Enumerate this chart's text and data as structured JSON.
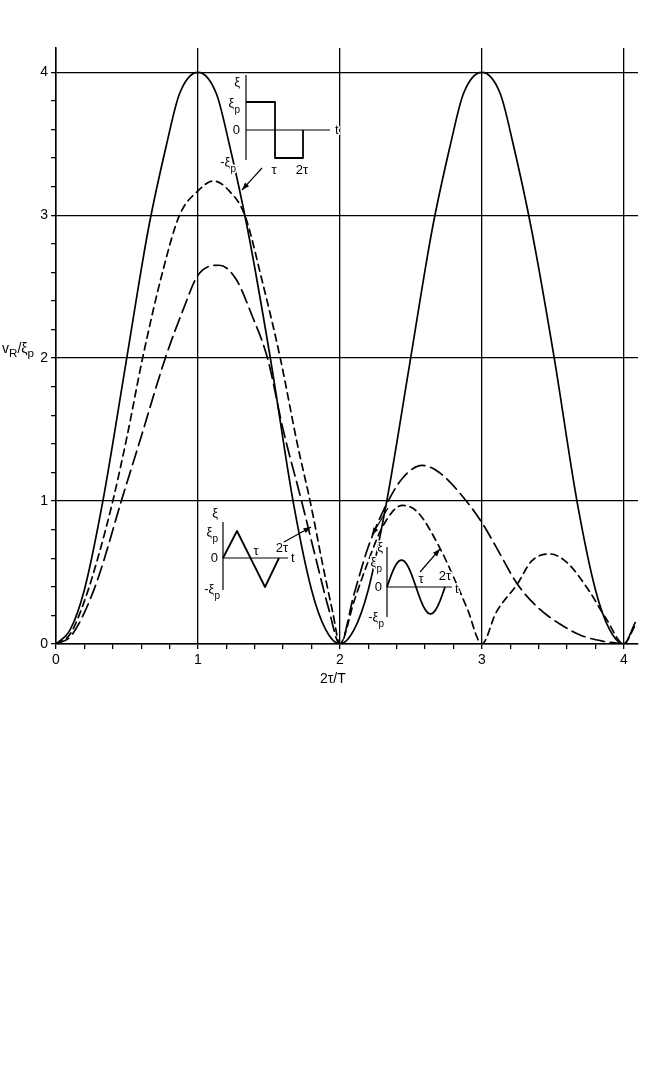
{
  "chart_data": {
    "type": "line",
    "xlabel": "2τ/T",
    "ylabel": "v$_{R}$/ξ$_{p}$",
    "xlim": [
      0,
      4.1
    ],
    "ylim": [
      0,
      4.17
    ],
    "xticks": [
      0,
      {
        "value": 0.2,
        "label": null
      },
      {
        "value": 0.4,
        "label": null
      },
      {
        "value": 0.6,
        "label": null
      },
      {
        "value": 0.8,
        "label": null
      },
      1,
      {
        "value": 1.2,
        "label": null
      },
      {
        "value": 1.4,
        "label": null
      },
      {
        "value": 1.6,
        "label": null
      },
      {
        "value": 1.8,
        "label": null
      },
      2,
      {
        "value": 2.2,
        "label": null
      },
      {
        "value": 2.4,
        "label": null
      },
      {
        "value": 2.6,
        "label": null
      },
      {
        "value": 2.8,
        "label": null
      },
      3,
      {
        "value": 3.2,
        "label": null
      },
      {
        "value": 3.4,
        "label": null
      },
      {
        "value": 3.6,
        "label": null
      },
      {
        "value": 3.8,
        "label": null
      },
      4
    ],
    "yticks": [
      0,
      {
        "value": 0.2,
        "label": null
      },
      {
        "value": 0.4,
        "label": null
      },
      {
        "value": 0.6,
        "label": null
      },
      {
        "value": 0.8,
        "label": null
      },
      1,
      {
        "value": 1.2,
        "label": null
      },
      {
        "value": 1.4,
        "label": null
      },
      {
        "value": 1.6,
        "label": null
      },
      {
        "value": 1.8,
        "label": null
      },
      2,
      {
        "value": 2.2,
        "label": null
      },
      {
        "value": 2.4,
        "label": null
      },
      {
        "value": 2.6,
        "label": null
      },
      {
        "value": 2.8,
        "label": null
      },
      3,
      {
        "value": 3.2,
        "label": null
      },
      {
        "value": 3.4,
        "label": null
      },
      {
        "value": 3.6,
        "label": null
      },
      {
        "value": 3.8,
        "label": null
      },
      4
    ],
    "grid": true,
    "legend": false,
    "series": [
      {
        "color": "#000000",
        "line_style": "solid",
        "x": [
          0,
          0.1,
          0.2,
          0.33,
          0.49,
          0.65,
          0.78,
          0.87,
          1.0,
          1.13,
          1.22,
          1.35,
          1.51,
          1.67,
          1.8,
          1.9,
          2.0,
          2.1,
          2.2,
          2.33,
          2.49,
          2.65,
          2.78,
          2.87,
          3.0,
          3.13,
          3.22,
          3.35,
          3.51,
          3.67,
          3.8,
          3.9,
          4.0,
          4.08
        ],
        "values": [
          0,
          0.1,
          0.38,
          1.0,
          1.95,
          2.9,
          3.5,
          3.85,
          4.0,
          3.85,
          3.5,
          2.9,
          2.0,
          1.0,
          0.38,
          0.1,
          0,
          0.1,
          0.38,
          1.0,
          1.95,
          2.9,
          3.5,
          3.85,
          4.0,
          3.85,
          3.5,
          2.9,
          2.0,
          1.0,
          0.38,
          0.1,
          0,
          0.15
        ]
      },
      {
        "color": "#000000",
        "line_style": "dashed",
        "x": [
          0,
          0.1,
          0.2,
          0.3,
          0.4,
          0.5,
          0.61,
          0.75,
          0.87,
          1.0,
          1.11,
          1.22,
          1.33,
          1.45,
          1.58,
          1.7,
          1.79,
          1.88,
          1.95,
          2.0,
          2.1,
          2.2,
          2.3,
          2.44,
          2.55,
          2.7,
          2.8,
          2.9,
          3.0,
          3.1,
          3.25,
          3.35,
          3.48,
          3.6,
          3.75,
          3.88,
          4.0,
          4.08
        ],
        "values": [
          0,
          0.07,
          0.3,
          0.62,
          1.0,
          1.45,
          2.0,
          2.6,
          3.0,
          3.17,
          3.24,
          3.17,
          3.0,
          2.55,
          2.0,
          1.4,
          1.0,
          0.55,
          0.22,
          0,
          0.3,
          0.58,
          0.82,
          0.97,
          0.92,
          0.68,
          0.47,
          0.24,
          0,
          0.22,
          0.42,
          0.58,
          0.63,
          0.57,
          0.38,
          0.17,
          0,
          0.13
        ]
      },
      {
        "color": "#000000",
        "line_style": "dashed",
        "x": [
          0,
          0.1,
          0.2,
          0.3,
          0.46,
          0.6,
          0.77,
          0.9,
          1.0,
          1.15,
          1.27,
          1.38,
          1.49,
          1.6,
          1.73,
          1.83,
          1.92,
          2.0,
          2.1,
          2.2,
          2.34,
          2.45,
          2.58,
          2.7,
          2.85,
          3.0,
          3.1,
          3.25,
          3.4,
          3.55,
          3.7,
          3.85,
          4.0
        ],
        "values": [
          0,
          0.05,
          0.22,
          0.47,
          1.0,
          1.45,
          2.0,
          2.35,
          2.58,
          2.65,
          2.55,
          2.3,
          2.0,
          1.5,
          1.0,
          0.6,
          0.25,
          0,
          0.35,
          0.68,
          1.0,
          1.17,
          1.25,
          1.2,
          1.05,
          0.85,
          0.68,
          0.42,
          0.25,
          0.14,
          0.06,
          0.02,
          0
        ]
      }
    ],
    "annotations": [
      "ξ",
      "ξ$_{p}$",
      "0",
      "-ξ$_{p}$",
      "τ",
      "2τ",
      "t",
      "ξ",
      "ξ$_{p}$",
      "0",
      "-ξ$_{p}$",
      "τ",
      "2τ",
      "t",
      "ξ",
      "ξ$_{p}$",
      "0",
      "-ξ$_{p}$",
      "τ",
      "2τ",
      "t"
    ]
  }
}
